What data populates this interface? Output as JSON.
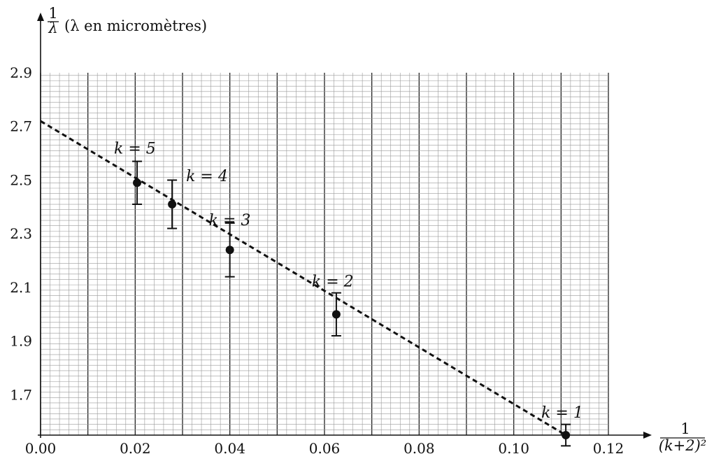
{
  "chart_data": {
    "type": "scatter",
    "ylabel_symbol": "1/λ",
    "ylabel": "(λ en micromètres)",
    "xlabel": "1/(k+2)²",
    "xlim": [
      0.0,
      0.12
    ],
    "ylim": [
      1.55,
      2.9
    ],
    "x_ticks": [
      "0.00",
      "0.02",
      "0.04",
      "0.06",
      "0.08",
      "0.10",
      "0.12"
    ],
    "y_ticks": [
      "1.7",
      "1.9",
      "2.1",
      "2.3",
      "2.5",
      "2.7",
      "2.9"
    ],
    "grid": true,
    "series": [
      {
        "points": [
          {
            "label": "k = 1",
            "x": 0.111,
            "y": 1.55,
            "err": 0.04
          },
          {
            "label": "k = 2",
            "x": 0.0625,
            "y": 2.0,
            "err": 0.08
          },
          {
            "label": "k = 3",
            "x": 0.04,
            "y": 2.24,
            "err": 0.1
          },
          {
            "label": "k = 4",
            "x": 0.0278,
            "y": 2.41,
            "err": 0.09
          },
          {
            "label": "k = 5",
            "x": 0.0204,
            "y": 2.49,
            "err": 0.08
          }
        ]
      }
    ],
    "fit_line": {
      "style": "dashed",
      "x": [
        0.0,
        0.111
      ],
      "y": [
        2.72,
        1.55
      ]
    }
  }
}
